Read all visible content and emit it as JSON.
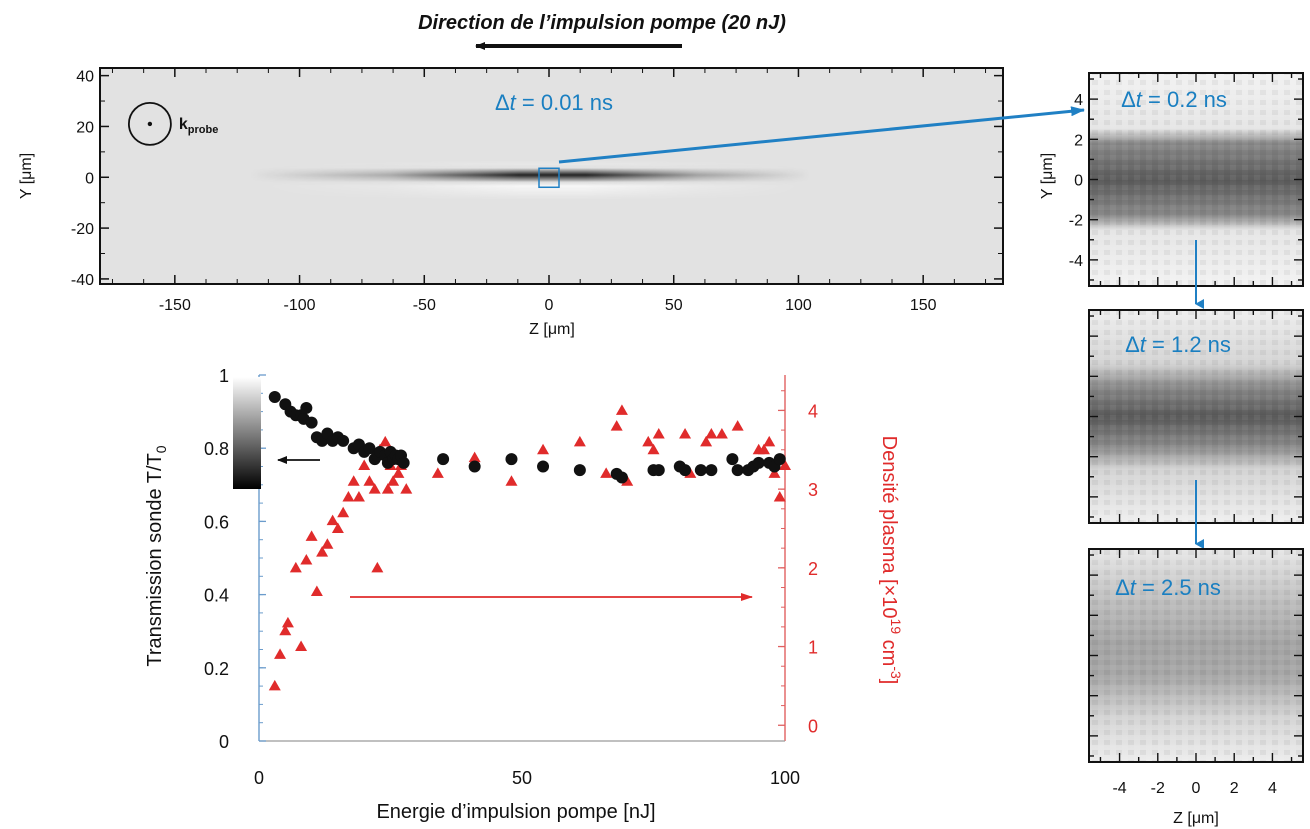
{
  "colors": {
    "dt_blue": "#1a7fc1",
    "arrow_blue": "#2080c4",
    "red": "#e02b2b",
    "black": "#111111",
    "axis_red": "#e06060",
    "axis_blue": "#6b9ccc"
  },
  "header": {
    "title": "Direction de l’impulsion pompe (20 nJ)"
  },
  "chart_data": [
    {
      "type": "heatmap",
      "xlabel": "Z [μm]",
      "ylabel": "Y [μm]",
      "xlim": [
        -180,
        182
      ],
      "ylim": [
        -42,
        43
      ],
      "xticks": [
        "-150",
        "-100",
        "-50",
        "0",
        "50",
        "100",
        "150"
      ],
      "yticks": [
        "40",
        "20",
        "0",
        "-20",
        "-40"
      ],
      "annotation": {
        "prefix": "Δ",
        "var": "t",
        "value": " = 0.01 ns"
      },
      "k_label": {
        "main": "k",
        "sub": "probe"
      },
      "k_center": [
        -160,
        21
      ],
      "zoom_box": [
        0,
        0
      ]
    },
    {
      "type": "heatmap",
      "ylabel": "Y [μm]",
      "yticks": [
        "4",
        "2",
        "0",
        "-2",
        "-4"
      ],
      "ylim": [
        -5.3,
        5.3
      ],
      "xlim": [
        -5.6,
        5.6
      ],
      "annotation": {
        "prefix": "Δ",
        "var": "t",
        "value": " = 0.2 ns"
      }
    },
    {
      "type": "heatmap",
      "ylim": [
        -5.3,
        5.3
      ],
      "xlim": [
        -5.6,
        5.6
      ],
      "annotation": {
        "prefix": "Δ",
        "var": "t",
        "value": " = 1.2 ns"
      }
    },
    {
      "type": "heatmap",
      "xlabel": "Z [μm]",
      "xticks": [
        "-4",
        "-2",
        "0",
        "2",
        "4"
      ],
      "ylim": [
        -5.3,
        5.3
      ],
      "xlim": [
        -5.6,
        5.6
      ],
      "annotation": {
        "prefix": "Δ",
        "var": "t",
        "value": " = 2.5 ns"
      }
    },
    {
      "type": "scatter",
      "xlabel": "Energie d’impulsion pompe [nJ]",
      "ylabel": "Transmission sonde T/T",
      "ylabel_sub": "0",
      "y2label": "Densité plasma [×10",
      "y2label_sup1": "19",
      "y2label_mid": " cm",
      "y2label_sup2": "-3",
      "y2label_end": "]",
      "xlim": [
        0,
        100
      ],
      "ylim": [
        0,
        1
      ],
      "y2lim": [
        -0.2,
        4.45
      ],
      "xticks": [
        "0",
        "50",
        "100"
      ],
      "yticks": [
        "1",
        "0.8",
        "0.6",
        "0.4",
        "0.2",
        "0"
      ],
      "y2ticks": [
        "4",
        "3",
        "2",
        "1",
        "0"
      ],
      "series": [
        {
          "axis": "left",
          "marker": "circle",
          "color": "#111111",
          "x": [
            3,
            5,
            6,
            7,
            8,
            8.5,
            9,
            10,
            11,
            12,
            13,
            14,
            15,
            16,
            18,
            19,
            20,
            21,
            22,
            22.5,
            23,
            24,
            24.5,
            25,
            25.5,
            26,
            26.5,
            27,
            27.5,
            35,
            41,
            48,
            54,
            61,
            68,
            69,
            75,
            76,
            80,
            81,
            84,
            86,
            90,
            91,
            93,
            94,
            95,
            97,
            98,
            99
          ],
          "y": [
            0.94,
            0.92,
            0.9,
            0.89,
            0.89,
            0.88,
            0.91,
            0.87,
            0.83,
            0.82,
            0.84,
            0.82,
            0.83,
            0.82,
            0.8,
            0.81,
            0.79,
            0.8,
            0.77,
            0.78,
            0.79,
            0.78,
            0.76,
            0.79,
            0.77,
            0.78,
            0.77,
            0.78,
            0.76,
            0.77,
            0.75,
            0.77,
            0.75,
            0.74,
            0.73,
            0.72,
            0.74,
            0.74,
            0.75,
            0.74,
            0.74,
            0.74,
            0.77,
            0.74,
            0.74,
            0.75,
            0.76,
            0.76,
            0.75,
            0.77
          ]
        },
        {
          "axis": "right",
          "marker": "triangle",
          "color": "#e02b2b",
          "x": [
            3,
            4,
            5,
            5.5,
            7,
            8,
            9,
            10,
            11,
            12,
            13,
            14,
            15,
            16,
            17,
            18,
            19,
            20,
            21,
            22,
            22.5,
            23,
            24,
            24.5,
            25,
            25.5,
            26,
            26.5,
            27,
            28,
            34,
            41,
            48,
            54,
            61,
            66,
            68,
            69,
            70,
            74,
            75,
            76,
            81,
            82,
            85,
            86,
            88,
            91,
            95,
            96,
            97,
            98,
            99,
            100
          ],
          "y": [
            0.5,
            0.9,
            1.2,
            1.3,
            2.0,
            1.0,
            2.1,
            2.4,
            1.7,
            2.2,
            2.3,
            2.6,
            2.5,
            2.7,
            2.9,
            3.1,
            2.9,
            3.3,
            3.1,
            3.0,
            2.0,
            3.5,
            3.6,
            3.0,
            3.3,
            3.1,
            3.4,
            3.2,
            3.3,
            3.0,
            3.2,
            3.4,
            3.1,
            3.5,
            3.6,
            3.2,
            3.8,
            4.0,
            3.1,
            3.6,
            3.5,
            3.7,
            3.7,
            3.2,
            3.6,
            3.7,
            3.7,
            3.8,
            3.5,
            3.5,
            3.6,
            3.2,
            2.9,
            3.3
          ]
        }
      ]
    }
  ]
}
